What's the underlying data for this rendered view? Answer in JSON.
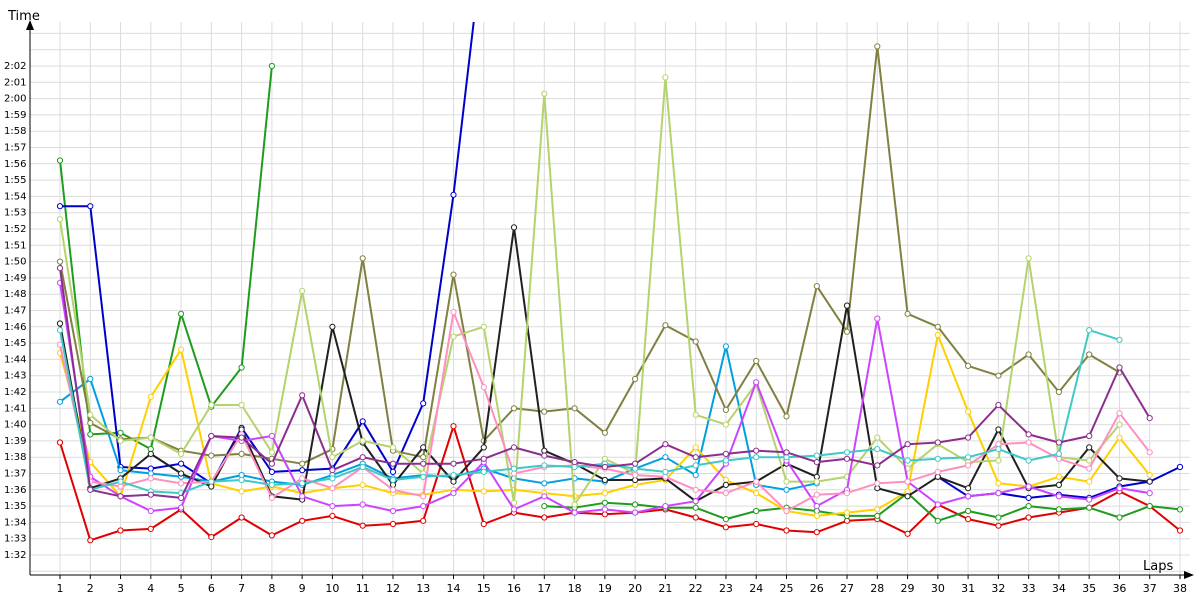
{
  "chart_data": {
    "type": "line",
    "title": "",
    "xlabel": "Laps",
    "ylabel": "Time",
    "grid": true,
    "x_range": [
      1,
      38
    ],
    "y_range_seconds": [
      90,
      125
    ],
    "x_ticks": [
      "1",
      "2",
      "3",
      "4",
      "5",
      "6",
      "7",
      "8",
      "9",
      "10",
      "11",
      "12",
      "13",
      "14",
      "15",
      "16",
      "17",
      "18",
      "19",
      "20",
      "21",
      "22",
      "23",
      "24",
      "25",
      "26",
      "27",
      "28",
      "29",
      "30",
      "31",
      "32",
      "33",
      "34",
      "35",
      "36",
      "37",
      "38"
    ],
    "y_ticks": [
      "1:32",
      "1:33",
      "1:34",
      "1:35",
      "1:36",
      "1:37",
      "1:38",
      "1:39",
      "1:40",
      "1:41",
      "1:42",
      "1:43",
      "1:44",
      "1:45",
      "1:46",
      "1:47",
      "1:48",
      "1:49",
      "1:50",
      "1:51",
      "1:52",
      "1:53",
      "1:54",
      "1:55",
      "1:56",
      "1:57",
      "1:58",
      "1:59",
      "2:00",
      "2:01",
      "2:02"
    ],
    "series_note": "lap times in seconds; values above chart top are drawn clipped",
    "series": [
      {
        "color": "#e00000",
        "laps": [
          1,
          2,
          3,
          4,
          5,
          6,
          7,
          8,
          9,
          10,
          11,
          12,
          13,
          14,
          15,
          16,
          17,
          18,
          19,
          20,
          21,
          22,
          23,
          24,
          25,
          26,
          27,
          28,
          29,
          30,
          31,
          32,
          33,
          34,
          35,
          36,
          37,
          38
        ],
        "values": [
          98.9,
          92.9,
          93.5,
          93.6,
          94.8,
          93.1,
          94.3,
          93.2,
          94.1,
          94.4,
          93.8,
          93.9,
          94.1,
          99.9,
          93.9,
          94.6,
          94.3,
          94.6,
          94.5,
          94.6,
          94.8,
          94.3,
          93.7,
          93.9,
          93.5,
          93.4,
          94.1,
          94.2,
          93.3,
          95.1,
          94.2,
          93.8,
          94.3,
          94.6,
          94.9,
          95.9,
          95.0,
          93.5
        ]
      },
      {
        "color": "#1e9c1e",
        "laps": [
          1,
          2,
          3,
          4,
          5,
          6,
          7,
          8
        ],
        "values": [
          116.2,
          99.4,
          99.5,
          98.5,
          106.8,
          101.1,
          103.5,
          122.0
        ]
      },
      {
        "color": "#1e9c1e",
        "laps": [
          17,
          18,
          19,
          20,
          21,
          22,
          23,
          24,
          25,
          26,
          27,
          28,
          29,
          30,
          31,
          32,
          33,
          34,
          35,
          36,
          37,
          38
        ],
        "values": [
          95.0,
          94.9,
          95.2,
          95.1,
          94.9,
          94.9,
          94.2,
          94.7,
          94.9,
          94.7,
          94.4,
          94.4,
          95.8,
          94.1,
          94.7,
          94.3,
          95.0,
          94.8,
          94.9,
          94.3,
          95.0,
          94.8
        ]
      },
      {
        "color": "#0000cc",
        "laps": [
          1,
          2,
          3,
          4,
          5,
          6,
          7,
          8,
          9,
          10,
          11,
          12,
          13,
          14,
          15
        ],
        "values": [
          113.4,
          113.4,
          97.4,
          97.3,
          97.6,
          96.4,
          99.8,
          97.1,
          97.2,
          97.3,
          100.2,
          97.1,
          101.3,
          114.1,
          130
        ]
      },
      {
        "color": "#0000cc",
        "laps": [
          30,
          31,
          32,
          33,
          34,
          35,
          36,
          37,
          38
        ],
        "values": [
          96.8,
          95.6,
          95.8,
          95.5,
          95.7,
          95.5,
          96.2,
          96.5,
          97.4
        ]
      },
      {
        "color": "#00a0e0",
        "laps": [
          1,
          2,
          3,
          4,
          5,
          6,
          7,
          8,
          9,
          10,
          11,
          12,
          13,
          14,
          15,
          16,
          17,
          18,
          19,
          20,
          21,
          22,
          23,
          24,
          25,
          26
        ],
        "values": [
          101.4,
          102.8,
          97.2,
          97.0,
          96.8,
          96.5,
          96.9,
          96.5,
          96.3,
          96.9,
          97.6,
          96.7,
          96.9,
          96.8,
          97.3,
          96.7,
          96.4,
          96.7,
          96.5,
          97.3,
          98.0,
          96.9,
          104.8,
          96.3,
          96.0,
          96.4
        ]
      },
      {
        "color": "#ffd000",
        "laps": [
          1,
          2,
          3,
          4,
          5,
          6,
          7,
          8,
          9,
          10,
          11,
          12,
          13,
          14,
          15,
          16,
          17,
          18,
          19,
          20,
          21,
          22,
          23,
          24,
          25,
          26,
          27,
          28,
          29,
          30,
          31,
          32,
          33,
          34,
          35,
          36,
          37
        ],
        "values": [
          104.4,
          97.7,
          95.6,
          101.7,
          104.6,
          96.4,
          95.9,
          96.2,
          95.8,
          96.1,
          96.3,
          95.8,
          95.7,
          96.0,
          95.9,
          96.0,
          95.8,
          95.6,
          95.8,
          96.3,
          96.6,
          98.6,
          96.6,
          95.8,
          94.7,
          94.4,
          94.6,
          94.8,
          95.9,
          105.5,
          100.8,
          96.4,
          96.2,
          96.8,
          96.5,
          99.2,
          96.9
        ]
      },
      {
        "color": "#808040",
        "laps": [
          1,
          2,
          3,
          4,
          5,
          6,
          7,
          8,
          9,
          10,
          11,
          12,
          13,
          14,
          15,
          16,
          17,
          18,
          19,
          20,
          21,
          22,
          23,
          24,
          25,
          26,
          27,
          28,
          29,
          30,
          31,
          32,
          33,
          34,
          35,
          36
        ],
        "values": [
          110.0,
          100.1,
          99.1,
          99.2,
          98.4,
          98.1,
          98.2,
          97.9,
          97.6,
          98.5,
          110.2,
          98.4,
          98.0,
          109.2,
          99.0,
          101.0,
          100.8,
          101.0,
          99.5,
          102.8,
          106.1,
          105.1,
          100.9,
          103.9,
          100.5,
          108.5,
          105.7,
          123.2,
          106.8,
          106.0,
          103.6,
          103.0,
          104.3,
          102.0,
          104.3,
          103.2
        ]
      },
      {
        "color": "#202020",
        "laps": [
          1,
          2,
          3,
          4,
          5,
          6,
          7,
          8,
          9,
          10,
          11,
          12,
          13,
          14,
          15,
          16,
          17,
          18,
          19,
          20,
          21,
          22,
          23,
          24,
          25,
          26,
          27,
          28,
          29,
          30,
          31,
          32,
          33,
          34,
          35,
          36,
          37
        ],
        "values": [
          106.2,
          96.1,
          96.7,
          98.2,
          97.0,
          96.2,
          99.7,
          95.6,
          95.4,
          106.0,
          98.9,
          96.3,
          98.6,
          96.5,
          98.6,
          112.1,
          98.4,
          97.6,
          96.6,
          96.6,
          96.7,
          95.3,
          96.3,
          96.5,
          97.6,
          96.8,
          107.3,
          96.1,
          95.6,
          96.8,
          96.1,
          99.7,
          96.1,
          96.3,
          98.6,
          96.7,
          96.5
        ]
      },
      {
        "color": "#b5d36c",
        "laps": [
          1,
          2,
          3,
          4,
          5,
          6,
          7,
          8,
          9,
          10,
          11,
          12,
          13,
          14,
          15,
          16,
          17,
          18,
          19,
          20,
          21,
          22,
          23,
          24,
          25,
          26,
          27,
          28,
          29,
          30,
          31,
          32,
          33,
          34,
          35,
          36
        ],
        "values": [
          112.6,
          100.6,
          99.0,
          99.2,
          98.2,
          101.2,
          101.2,
          98.3,
          108.2,
          98.0,
          99.0,
          98.6,
          97.0,
          105.4,
          106.0,
          95.2,
          120.3,
          95.1,
          97.9,
          97.0,
          121.3,
          100.6,
          100.0,
          102.5,
          96.5,
          96.5,
          96.8,
          99.2,
          97.3,
          98.8,
          97.7,
          97.8,
          110.2,
          98.0,
          97.8,
          100.0
        ]
      },
      {
        "color": "#cc44ff",
        "laps": [
          1,
          2,
          3,
          4,
          5,
          6,
          7,
          8,
          9,
          10,
          11,
          12,
          13,
          14,
          15,
          16,
          17,
          18,
          19,
          20,
          21,
          22,
          23,
          24,
          25,
          26,
          27,
          28,
          29,
          30,
          31,
          32,
          33,
          34,
          35,
          36,
          37
        ],
        "values": [
          108.7,
          96.8,
          95.6,
          94.7,
          94.9,
          99.3,
          99.0,
          99.3,
          95.6,
          95.0,
          95.1,
          94.7,
          95.0,
          95.8,
          97.7,
          94.8,
          95.6,
          94.6,
          94.8,
          94.6,
          95.0,
          95.3,
          97.6,
          102.6,
          97.8,
          95.0,
          96.0,
          106.5,
          96.5,
          95.1,
          95.6,
          95.8,
          96.2,
          95.6,
          95.4,
          96.1,
          95.8
        ]
      },
      {
        "color": "#ff8fc0",
        "laps": [
          1,
          2,
          3,
          4,
          5,
          6,
          7,
          8,
          9,
          10,
          11,
          12,
          13,
          14,
          15,
          16,
          17,
          18,
          19,
          20,
          21,
          22,
          23,
          24,
          25,
          26,
          27,
          28,
          29,
          30,
          31,
          32,
          33,
          34,
          35,
          36,
          37
        ],
        "values": [
          104.9,
          96.5,
          96.2,
          96.7,
          96.4,
          96.5,
          99.4,
          95.5,
          96.7,
          96.1,
          97.4,
          96.0,
          95.6,
          106.9,
          102.3,
          97.0,
          97.4,
          97.5,
          97.3,
          96.9,
          96.8,
          96.0,
          95.8,
          96.5,
          94.7,
          95.7,
          95.8,
          96.4,
          96.5,
          97.1,
          97.5,
          98.8,
          98.9,
          97.9,
          97.3,
          100.7,
          98.3
        ]
      },
      {
        "color": "#40c8c8",
        "laps": [
          1,
          2,
          3,
          4,
          5,
          6,
          7,
          8,
          9,
          10,
          11,
          12,
          13,
          14,
          15,
          16,
          17,
          18,
          19,
          20,
          21,
          22,
          23,
          24,
          25,
          26,
          27,
          28,
          29,
          30,
          31,
          32,
          33,
          34,
          35,
          36
        ],
        "values": [
          105.8,
          96.0,
          96.5,
          95.9,
          95.8,
          96.5,
          96.6,
          96.3,
          96.4,
          96.7,
          97.4,
          96.6,
          96.8,
          96.9,
          97.1,
          97.3,
          97.5,
          97.4,
          97.6,
          97.3,
          97.1,
          97.5,
          97.8,
          98.0,
          98.0,
          98.1,
          98.3,
          98.5,
          97.8,
          97.9,
          98.0,
          98.5,
          97.8,
          98.2,
          105.8,
          105.2
        ]
      },
      {
        "color": "#8b2f8f",
        "laps": [
          1,
          2,
          3,
          4,
          5,
          6,
          7,
          8,
          9,
          10,
          11,
          12,
          13,
          14,
          15,
          16,
          17,
          18,
          19,
          20,
          21,
          22,
          23,
          24,
          25,
          26,
          27,
          28,
          29,
          30,
          31,
          32,
          33,
          34,
          35,
          36,
          37
        ],
        "values": [
          109.6,
          96.0,
          95.6,
          95.7,
          95.5,
          99.3,
          99.2,
          97.6,
          101.8,
          97.2,
          98.0,
          97.6,
          97.6,
          97.6,
          97.9,
          98.6,
          98.1,
          97.7,
          97.4,
          97.6,
          98.8,
          98.0,
          98.2,
          98.4,
          98.3,
          97.7,
          97.9,
          97.5,
          98.8,
          98.9,
          99.2,
          101.2,
          99.4,
          98.9,
          99.3,
          103.5,
          100.4
        ]
      }
    ]
  }
}
